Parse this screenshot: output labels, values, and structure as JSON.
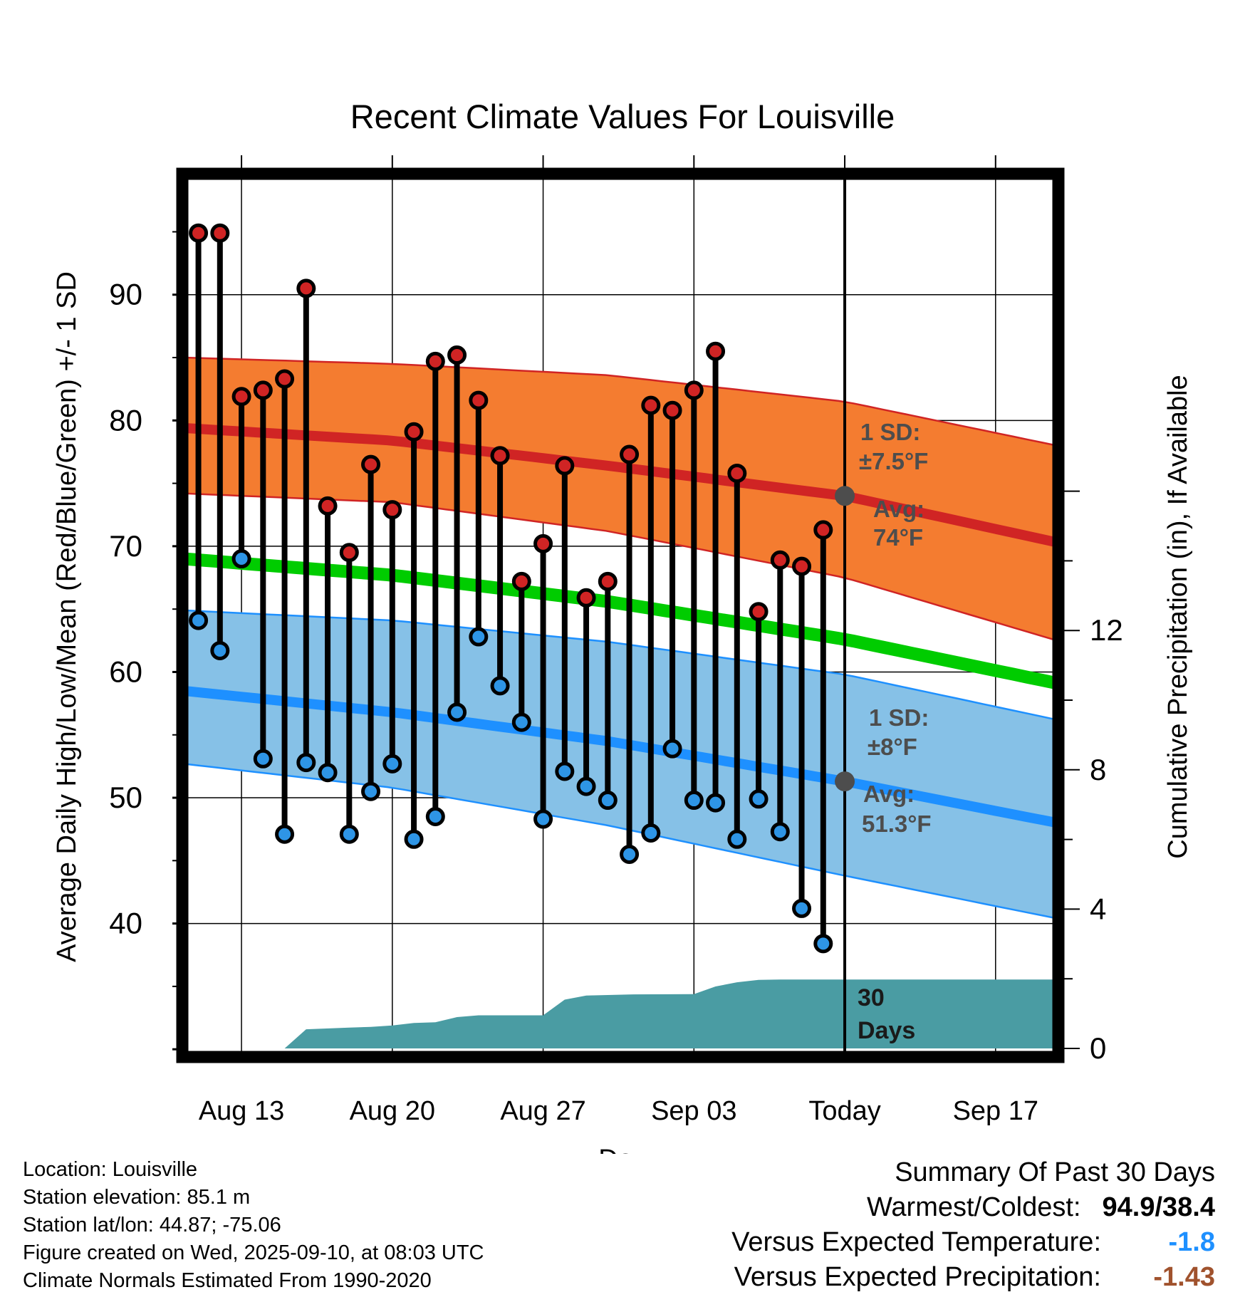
{
  "chart_data": {
    "type": "line",
    "title": "Recent Climate Values For Louisville",
    "xlabel": "Day",
    "ylabel": "Average Daily High/Low/Mean (Red/Blue/Green) +/- 1 SD",
    "y2label": "Cumulative Precipitation (in), If Available",
    "ylim": [
      29.5,
      99.5
    ],
    "y2lim": [
      0,
      20
    ],
    "yticks": [
      40,
      50,
      60,
      70,
      80,
      90
    ],
    "y2ticks": [
      0,
      4,
      8,
      12
    ],
    "x_labels": [
      {
        "day": 3,
        "label": "Aug 13"
      },
      {
        "day": 10,
        "label": "Aug 20"
      },
      {
        "day": 17,
        "label": "Aug 27"
      },
      {
        "day": 24,
        "label": "Sep 03"
      },
      {
        "day": 31,
        "label": "Today"
      },
      {
        "day": 38,
        "label": "Sep 17"
      }
    ],
    "x_range": [
      0.32,
      40.85
    ],
    "days": [
      1,
      2,
      3,
      4,
      5,
      6,
      7,
      8,
      9,
      10,
      11,
      12,
      13,
      14,
      15,
      16,
      17,
      18,
      19,
      20,
      21,
      22,
      23,
      24,
      25,
      26,
      27,
      28,
      29,
      30
    ],
    "highs": [
      94.9,
      94.9,
      81.9,
      82.4,
      83.3,
      90.5,
      73.2,
      69.5,
      76.5,
      72.9,
      79.1,
      84.7,
      85.2,
      81.6,
      77.2,
      67.2,
      70.2,
      76.4,
      65.9,
      67.2,
      77.3,
      81.2,
      80.8,
      82.4,
      85.5,
      75.8,
      64.8,
      68.9,
      68.4,
      71.3
    ],
    "lows": [
      64.1,
      61.7,
      69.0,
      53.1,
      47.1,
      52.8,
      52.0,
      47.1,
      50.5,
      52.7,
      46.7,
      48.5,
      56.8,
      62.8,
      58.9,
      56.0,
      48.3,
      52.1,
      50.9,
      49.8,
      45.5,
      47.2,
      53.9,
      49.8,
      49.6,
      46.7,
      49.9,
      47.3,
      41.2,
      38.4
    ],
    "normal_high": [
      [
        0.32,
        79.4
      ],
      [
        10,
        78.4
      ],
      [
        20,
        76.4
      ],
      [
        31,
        74.0
      ],
      [
        40.85,
        70.3
      ]
    ],
    "normal_high_band": {
      "upper": [
        [
          0.32,
          85.0
        ],
        [
          10,
          84.5
        ],
        [
          20,
          83.6
        ],
        [
          31,
          81.5
        ],
        [
          40.85,
          78.0
        ]
      ],
      "lower": [
        [
          0.32,
          74.2
        ],
        [
          10,
          73.5
        ],
        [
          20,
          71.2
        ],
        [
          31,
          67.5
        ],
        [
          40.85,
          62.5
        ]
      ]
    },
    "normal_mean": [
      [
        0.32,
        69.0
      ],
      [
        10,
        67.7
      ],
      [
        20,
        65.6
      ],
      [
        31,
        62.6
      ],
      [
        40.85,
        59.1
      ]
    ],
    "normal_low": [
      [
        0.32,
        58.5
      ],
      [
        10,
        56.8
      ],
      [
        20,
        54.5
      ],
      [
        31,
        51.3
      ],
      [
        40.85,
        48.0
      ]
    ],
    "normal_low_band": {
      "upper": [
        [
          0.32,
          64.9
        ],
        [
          10,
          64.1
        ],
        [
          20,
          62.4
        ],
        [
          31,
          59.8
        ],
        [
          40.85,
          56.2
        ]
      ],
      "lower": [
        [
          0.32,
          52.7
        ],
        [
          10,
          50.8
        ],
        [
          20,
          47.8
        ],
        [
          31,
          43.8
        ],
        [
          40.85,
          40.4
        ]
      ]
    },
    "precip_cumulative": [
      [
        1,
        0
      ],
      [
        5,
        0
      ],
      [
        6,
        0.55
      ],
      [
        8,
        0.6
      ],
      [
        9,
        0.62
      ],
      [
        10,
        0.66
      ],
      [
        11,
        0.73
      ],
      [
        12,
        0.75
      ],
      [
        13,
        0.9
      ],
      [
        14,
        0.95
      ],
      [
        17,
        0.95
      ],
      [
        18,
        1.4
      ],
      [
        19,
        1.52
      ],
      [
        21,
        1.55
      ],
      [
        24,
        1.56
      ],
      [
        25,
        1.78
      ],
      [
        26,
        1.9
      ],
      [
        27,
        1.97
      ],
      [
        28,
        1.98
      ],
      [
        31,
        1.98
      ],
      [
        40.85,
        1.98
      ]
    ],
    "annotations": {
      "high_sd_l1": "1 SD:",
      "high_sd_l2": "±7.5°F",
      "high_avg_l1": "Avg:",
      "high_avg_l2": "74°F",
      "low_sd_l1": "1 SD:",
      "low_sd_l2": "±8°F",
      "low_avg_l1": "Avg:",
      "low_avg_l2": "51.3°F",
      "period_l1": "30",
      "period_l2": "Days"
    }
  },
  "colors": {
    "high_band": "#f47c30",
    "high_line": "#d02424",
    "mean_line": "#00cc00",
    "low_band": "#86c1e7",
    "low_line": "#1e90ff",
    "precip": "#4a9ca3",
    "high_marker": "#d02424",
    "low_marker": "#2e95e6",
    "today_dot": "#4d4d4d"
  },
  "footer": {
    "location": "Location: Louisville",
    "elevation": "Station elevation: 85.1 m",
    "latlon": "Station lat/lon: 44.87; -75.06",
    "created": "Figure created on Wed, 2025-09-10, at 08:03 UTC",
    "normals": "Climate Normals Estimated From 1990-2020"
  },
  "summary": {
    "title": "Summary Of Past 30 Days",
    "warm_cold_label": "Warmest/Coldest:",
    "warm_cold_value": "94.9/38.4",
    "temp_label": "Versus Expected Temperature:",
    "temp_value": "-1.8",
    "precip_label": "Versus Expected Precipitation:",
    "precip_value": "-1.43"
  }
}
